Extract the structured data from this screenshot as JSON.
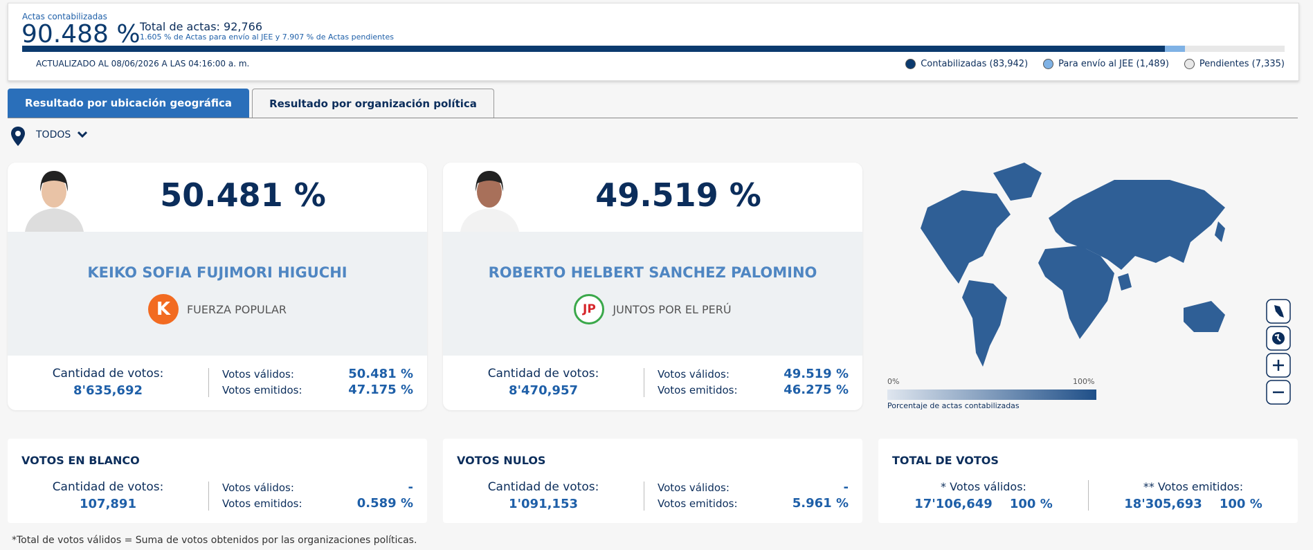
{
  "header": {
    "actas_label": "Actas contabilizadas",
    "actas_pct": "90.488 %",
    "total_actas": "Total de actas: 92,766",
    "detail": "1.605 % de Actas para envío al JEE y 7.907 % de Actas pendientes",
    "updated": "ACTUALIZADO AL 08/06/2026 A LAS 04:16:00 a. m.",
    "progress": [
      {
        "value": 90.488,
        "color": "#0b3a6e"
      },
      {
        "value": 1.605,
        "color": "#7fb2e5"
      },
      {
        "value": 7.907,
        "color": "#e8e8e8"
      }
    ],
    "legend": [
      "Contabilizadas (83,942)",
      "Para envío al JEE (1,489)",
      "Pendientes (7,335)"
    ]
  },
  "tabs": [
    "Resultado por ubicación geográfica",
    "Resultado por organización política"
  ],
  "filter": "TODOS",
  "candidates": [
    {
      "percent": "50.481 %",
      "name": "KEIKO SOFIA FUJIMORI HIGUCHI",
      "logo": "K",
      "party": "FUERZA POPULAR",
      "votes_label": "Cantidad de votos:",
      "votes": "8'635,692",
      "valid_label": "Votos válidos:",
      "valid": "50.481 %",
      "emitted_label": "Votos emitidos:",
      "emitted": "47.175 %"
    },
    {
      "percent": "49.519 %",
      "name": "ROBERTO HELBERT SANCHEZ PALOMINO",
      "logo": "JP",
      "party": "JUNTOS POR EL PERÚ",
      "votes_label": "Cantidad de votos:",
      "votes": "8'470,957",
      "valid_label": "Votos válidos:",
      "valid": "49.519 %",
      "emitted_label": "Votos emitidos:",
      "emitted": "46.275 %"
    }
  ],
  "map": {
    "min_label": "0%",
    "max_label": "100%",
    "caption": "Porcentaje de actas contabilizadas"
  },
  "summary": [
    {
      "title": "VOTOS EN BLANCO",
      "votes_label": "Cantidad de votos:",
      "votes": "107,891",
      "valid_label": "Votos válidos:",
      "valid": "-",
      "emitted_label": "Votos emitidos:",
      "emitted": "0.589 %"
    },
    {
      "title": "VOTOS NULOS",
      "votes_label": "Cantidad de votos:",
      "votes": "1'091,153",
      "valid_label": "Votos válidos:",
      "valid": "-",
      "emitted_label": "Votos emitidos:",
      "emitted": "5.961 %"
    }
  ],
  "total": {
    "title": "TOTAL DE VOTOS",
    "valid_label": "* Votos válidos:",
    "valid_votes": "17'106,649",
    "valid_pct": "100 %",
    "emitted_label": "** Votos emitidos:",
    "emitted_votes": "18'305,693",
    "emitted_pct": "100 %"
  },
  "footnote": "*Total de votos válidos = Suma de votos obtenidos por las organizaciones políticas."
}
